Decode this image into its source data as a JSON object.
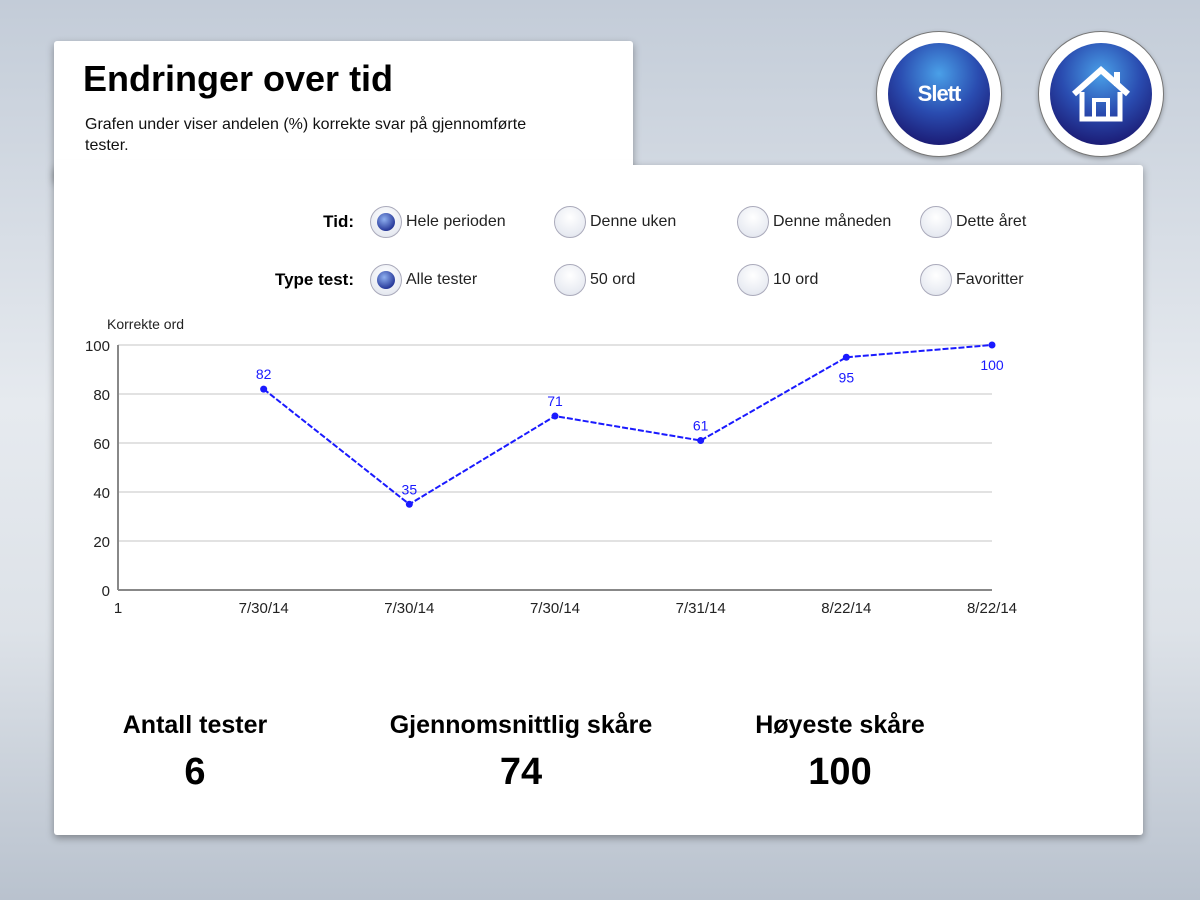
{
  "header": {
    "title": "Endringer over tid",
    "subtitle": "Grafen under viser andelen (%) korrekte svar på gjennomførte tester."
  },
  "buttons": {
    "delete_label": "Slett",
    "home_icon": "home-icon"
  },
  "filters": {
    "time": {
      "label": "Tid:",
      "options": [
        "Hele perioden",
        "Denne uken",
        "Denne måneden",
        "Dette året"
      ],
      "selected": 0
    },
    "type": {
      "label": "Type test:",
      "options": [
        "Alle tester",
        "50 ord",
        "10 ord",
        "Favoritter"
      ],
      "selected": 0
    }
  },
  "chart_data": {
    "type": "line",
    "ylabel": "Korrekte ord",
    "ylim": [
      0,
      100
    ],
    "yticks": [
      0,
      20,
      40,
      60,
      80,
      100
    ],
    "origin_label": "1",
    "categories": [
      "7/30/14",
      "7/30/14",
      "7/30/14",
      "7/31/14",
      "8/22/14",
      "8/22/14"
    ],
    "values": [
      82,
      35,
      71,
      61,
      95,
      100
    ],
    "color": "#1a1aff",
    "grid": true
  },
  "stats": [
    {
      "label": "Antall tester",
      "value": "6"
    },
    {
      "label": "Gjennomsnittlig skåre",
      "value": "74"
    },
    {
      "label": "Høyeste skåre",
      "value": "100"
    }
  ]
}
